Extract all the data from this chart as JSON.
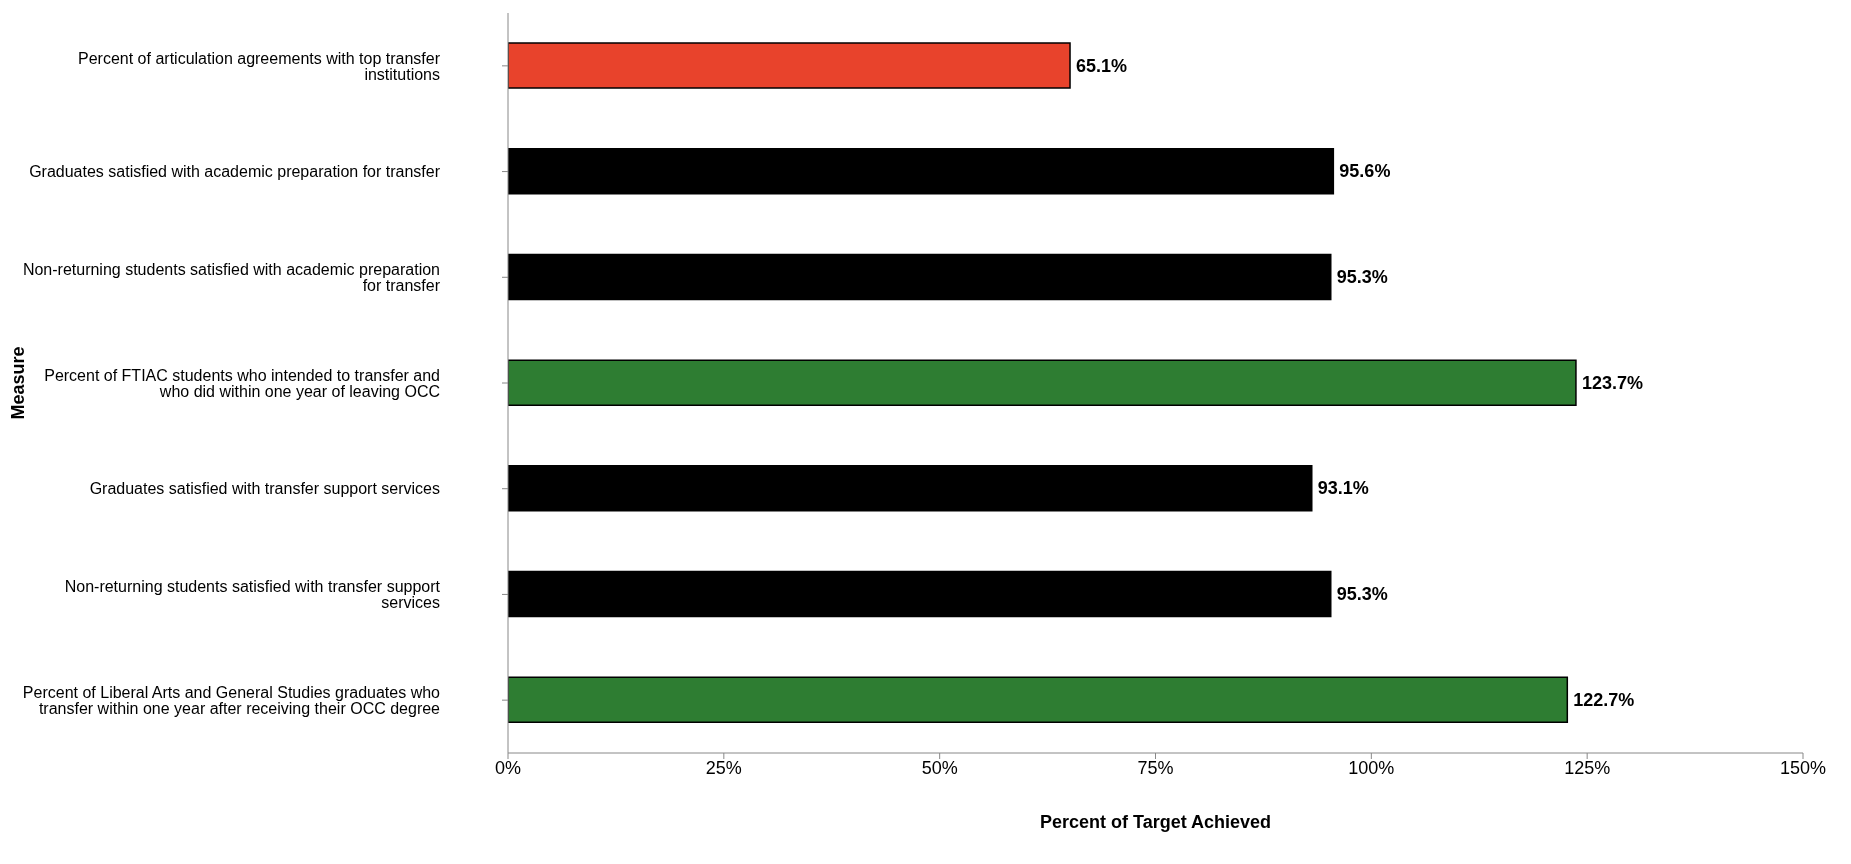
{
  "chart_data": {
    "type": "bar",
    "orientation": "horizontal",
    "xlabel": "Percent of Target Achieved",
    "ylabel": "Measure",
    "categories": [
      "Percent of articulation agreements with top transfer institutions",
      "Graduates satisfied with academic preparation for transfer",
      "Non-returning students satisfied with academic preparation for transfer",
      "Percent of FTIAC students who intended to transfer and who did within one year of leaving OCC",
      "Graduates satisfied with transfer support services",
      "Non-returning students satisfied with transfer support services",
      "Percent of Liberal Arts and General Studies graduates who transfer within one year after receiving their OCC degree"
    ],
    "values": [
      65.1,
      95.6,
      95.3,
      123.7,
      93.1,
      95.3,
      122.7
    ],
    "value_labels": [
      "65.1%",
      "95.6%",
      "95.3%",
      "123.7%",
      "93.1%",
      "95.3%",
      "122.7%"
    ],
    "colors": [
      "#e8432c",
      "#000000",
      "#000000",
      "#2e7d32",
      "#000000",
      "#000000",
      "#2e7d32"
    ],
    "xlim": [
      0,
      150
    ],
    "xticks": [
      {
        "value": 0,
        "label": "0%"
      },
      {
        "value": 25,
        "label": "25%"
      },
      {
        "value": 50,
        "label": "50%"
      },
      {
        "value": 75,
        "label": "75%"
      },
      {
        "value": 100,
        "label": "100%"
      },
      {
        "value": 125,
        "label": "125%"
      },
      {
        "value": 150,
        "label": "150%"
      }
    ],
    "grid": false
  }
}
